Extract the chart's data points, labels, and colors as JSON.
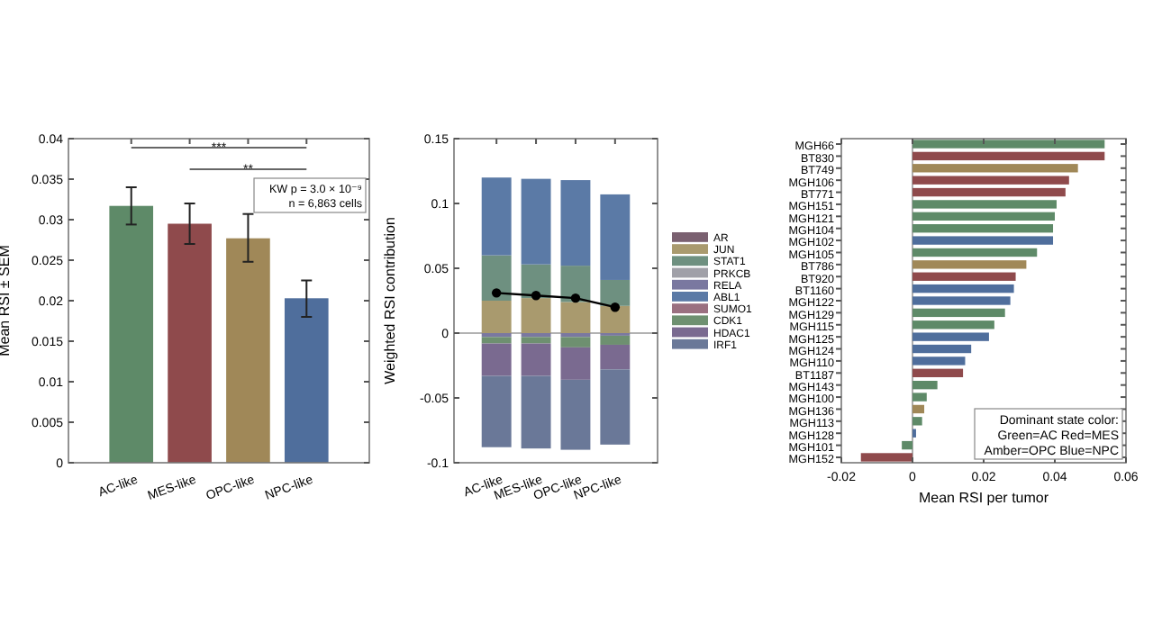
{
  "chart_data": [
    {
      "type": "bar",
      "ylabel": "Mean RSI ± SEM",
      "categories": [
        "AC-like",
        "MES-like",
        "OPC-like",
        "NPC-like"
      ],
      "values": [
        0.0317,
        0.0295,
        0.0277,
        0.0203
      ],
      "colors": [
        "#5e8a68",
        "#8f4a4c",
        "#a08858",
        "#4f6e9c"
      ],
      "errors": [
        [
          0.0294,
          0.034
        ],
        [
          0.027,
          0.032
        ],
        [
          0.0248,
          0.0307
        ],
        [
          0.018,
          0.0225
        ]
      ],
      "ylim": [
        0,
        0.04
      ],
      "yticks": [
        0,
        0.005,
        0.01,
        0.015,
        0.02,
        0.025,
        0.03,
        0.035,
        0.04
      ],
      "annotations": [
        "***",
        "**",
        "KW p = 3.0 × 10⁻⁹",
        "n = 6,863 cells"
      ],
      "legend": false,
      "grid": false
    },
    {
      "type": "bar",
      "ylabel": "Weighted RSI contribution",
      "categories": [
        "AC-like",
        "MES-like",
        "OPC-like",
        "NPC-like"
      ],
      "stacked": true,
      "legend": "right",
      "grid": false,
      "ylim": [
        -0.1,
        0.15
      ],
      "yticks": [
        -0.1,
        -0.05,
        0,
        0.05,
        0.1,
        0.15
      ],
      "ref_lines": [
        {
          "axis": "y",
          "value": 0,
          "color": "#999999"
        }
      ],
      "series": [
        {
          "name": "AR",
          "color": "#7a6070",
          "values": [
            0,
            0,
            0,
            0
          ]
        },
        {
          "name": "JUN",
          "color": "#a99a6e",
          "values": [
            0.025,
            0.027,
            0.024,
            0.021
          ]
        },
        {
          "name": "STAT1",
          "color": "#6e9080",
          "values": [
            0.035,
            0.026,
            0.028,
            0.02
          ]
        },
        {
          "name": "PRKCB",
          "color": "#a0a0a8",
          "values": [
            0,
            0,
            0,
            0
          ]
        },
        {
          "name": "RELA",
          "color": "#7a78a0",
          "values": [
            -0.003,
            -0.003,
            -0.003,
            -0.002
          ]
        },
        {
          "name": "ABL1",
          "color": "#5b7aa6",
          "values": [
            0.06,
            0.066,
            0.066,
            0.066
          ]
        },
        {
          "name": "SUMO1",
          "color": "#9a7080",
          "values": [
            0,
            0,
            0,
            0
          ]
        },
        {
          "name": "CDK1",
          "color": "#6e9070",
          "values": [
            -0.005,
            -0.005,
            -0.008,
            -0.007
          ]
        },
        {
          "name": "HDAC1",
          "color": "#7a6a90",
          "values": [
            -0.025,
            -0.025,
            -0.025,
            -0.019
          ]
        },
        {
          "name": "IRF1",
          "color": "#6a7898",
          "values": [
            -0.055,
            -0.056,
            -0.054,
            -0.058
          ]
        },
        {
          "type": "line",
          "color": "#000000",
          "marker": "circle",
          "values": [
            0.031,
            0.029,
            0.027,
            0.02
          ]
        }
      ]
    },
    {
      "type": "bar",
      "orientation": "horizontal",
      "xlabel": "Mean RSI per tumor",
      "legend": false,
      "grid": false,
      "xlim": [
        -0.02,
        0.06
      ],
      "xticks": [
        -0.02,
        0,
        0.02,
        0.04,
        0.06
      ],
      "ref_lines": [
        {
          "axis": "x",
          "value": 0,
          "color": "#999999"
        }
      ],
      "categories": [
        "MGH66",
        "BT830",
        "BT749",
        "MGH106",
        "BT771",
        "MGH151",
        "MGH121",
        "MGH104",
        "MGH102",
        "MGH105",
        "BT786",
        "BT920",
        "BT1160",
        "MGH122",
        "MGH129",
        "MGH115",
        "MGH125",
        "MGH124",
        "MGH110",
        "BT1187",
        "MGH143",
        "MGH100",
        "MGH136",
        "MGH113",
        "MGH128",
        "MGH101",
        "MGH152"
      ],
      "values": [
        0.054,
        0.054,
        0.0465,
        0.044,
        0.043,
        0.0405,
        0.04,
        0.0395,
        0.0395,
        0.035,
        0.032,
        0.029,
        0.0285,
        0.0275,
        0.026,
        0.023,
        0.0215,
        0.0165,
        0.0148,
        0.0142,
        0.007,
        0.004,
        0.0033,
        0.0027,
        0.001,
        -0.003,
        -0.0145
      ],
      "colors": [
        "#5e8a68",
        "#8f4a4c",
        "#a08858",
        "#8f4a4c",
        "#8f4a4c",
        "#5e8a68",
        "#5e8a68",
        "#5e8a68",
        "#4f6e9c",
        "#5e8a68",
        "#a08858",
        "#8f4a4c",
        "#4f6e9c",
        "#4f6e9c",
        "#5e8a68",
        "#5e8a68",
        "#4f6e9c",
        "#4f6e9c",
        "#4f6e9c",
        "#8f4a4c",
        "#5e8a68",
        "#5e8a68",
        "#a08858",
        "#5e8a68",
        "#4f6e9c",
        "#5e8a68",
        "#8f4a4c"
      ],
      "annotations": [
        "Dominant state color:",
        "Green=AC  Red=MES",
        "Amber=OPC  Blue=NPC"
      ]
    }
  ]
}
